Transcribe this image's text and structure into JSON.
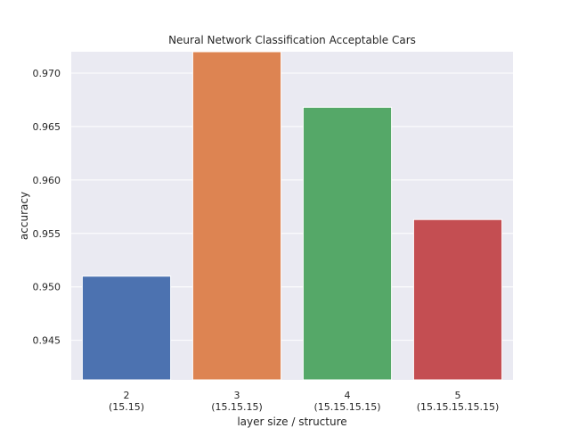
{
  "chart_data": {
    "type": "bar",
    "title": "Neural Network Classification Acceptable Cars",
    "xlabel": "layer size / structure",
    "ylabel": "accuracy",
    "categories": [
      {
        "line1": "2",
        "line2": "(15.15)"
      },
      {
        "line1": "3",
        "line2": "(15.15.15)"
      },
      {
        "line1": "4",
        "line2": "(15.15.15.15)"
      },
      {
        "line1": "5",
        "line2": "(15.15.15.15.15)"
      }
    ],
    "values": [
      0.951,
      0.9725,
      0.9668,
      0.9563
    ],
    "colors": [
      "#4c72b0",
      "#dd8452",
      "#55a868",
      "#c44e52"
    ],
    "ylim": [
      0.9413,
      0.972
    ],
    "yticks": [
      "0.945",
      "0.950",
      "0.955",
      "0.960",
      "0.965",
      "0.970"
    ],
    "grid": true,
    "background": "#eaeaf2"
  }
}
